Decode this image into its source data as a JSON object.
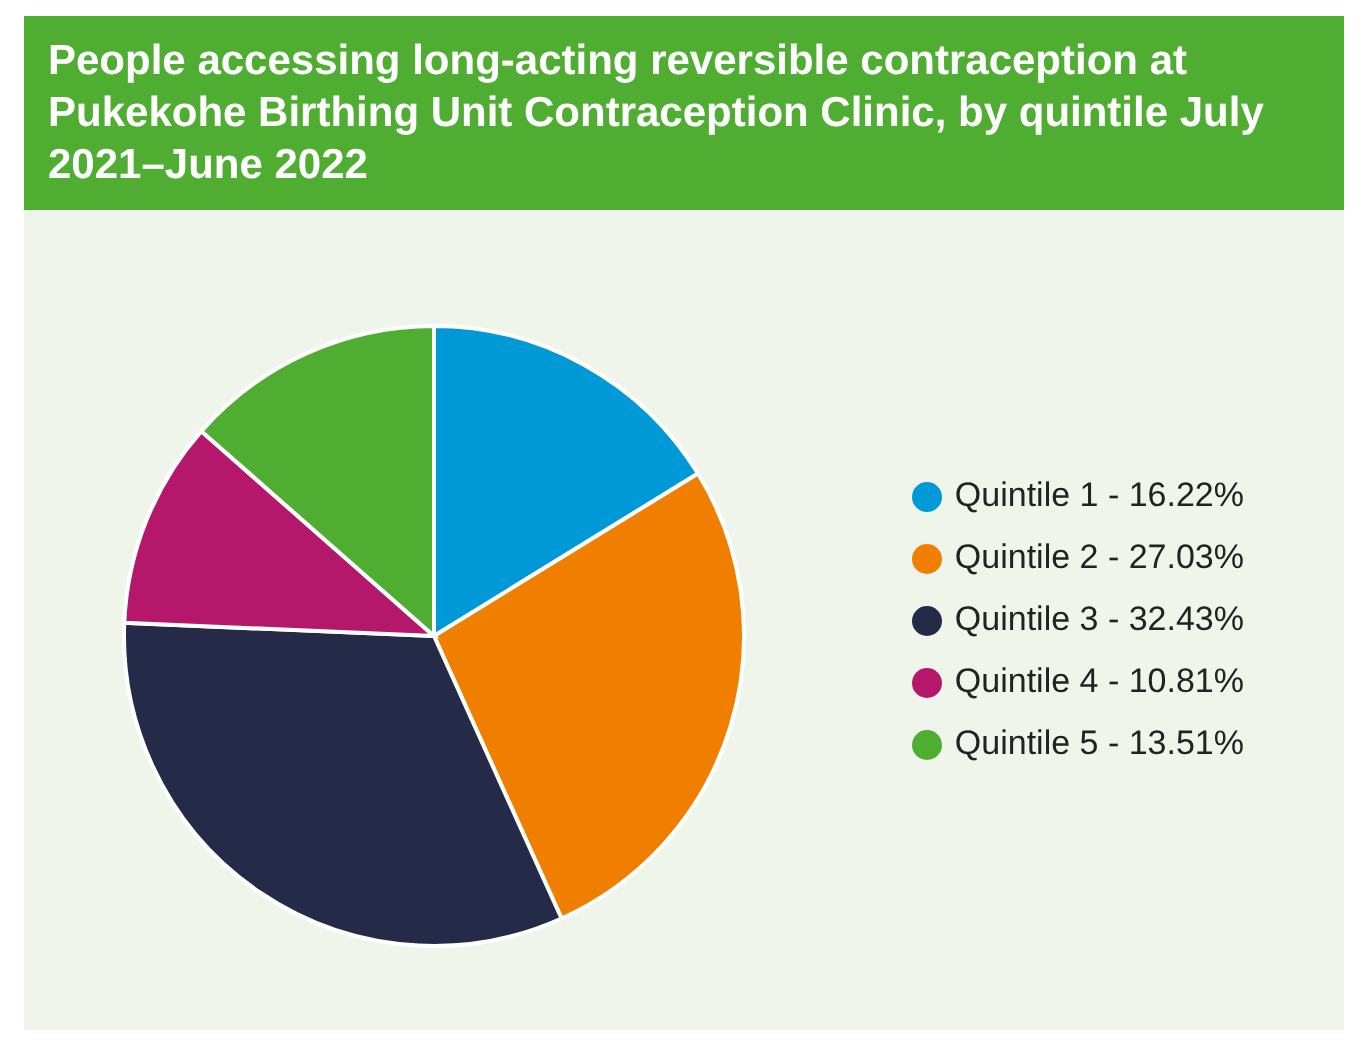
{
  "chart_data": {
    "type": "pie",
    "title": "People accessing long-acting reversible contraception at Pukekohe Birthing Unit Contraception Clinic, by quintile July 2021–June 2022",
    "categories": [
      "Quintile 1 - 16.22%",
      "Quintile 2 - 27.03%",
      "Quintile 3 - 32.43%",
      "Quintile 4 - 10.81%",
      "Quintile 5 - 13.51%"
    ],
    "values": [
      16.22,
      27.03,
      32.43,
      10.81,
      13.51
    ],
    "colors": [
      "#0099d8",
      "#f07f00",
      "#242a47",
      "#b5186b",
      "#4fae32"
    ],
    "legend": "right"
  }
}
